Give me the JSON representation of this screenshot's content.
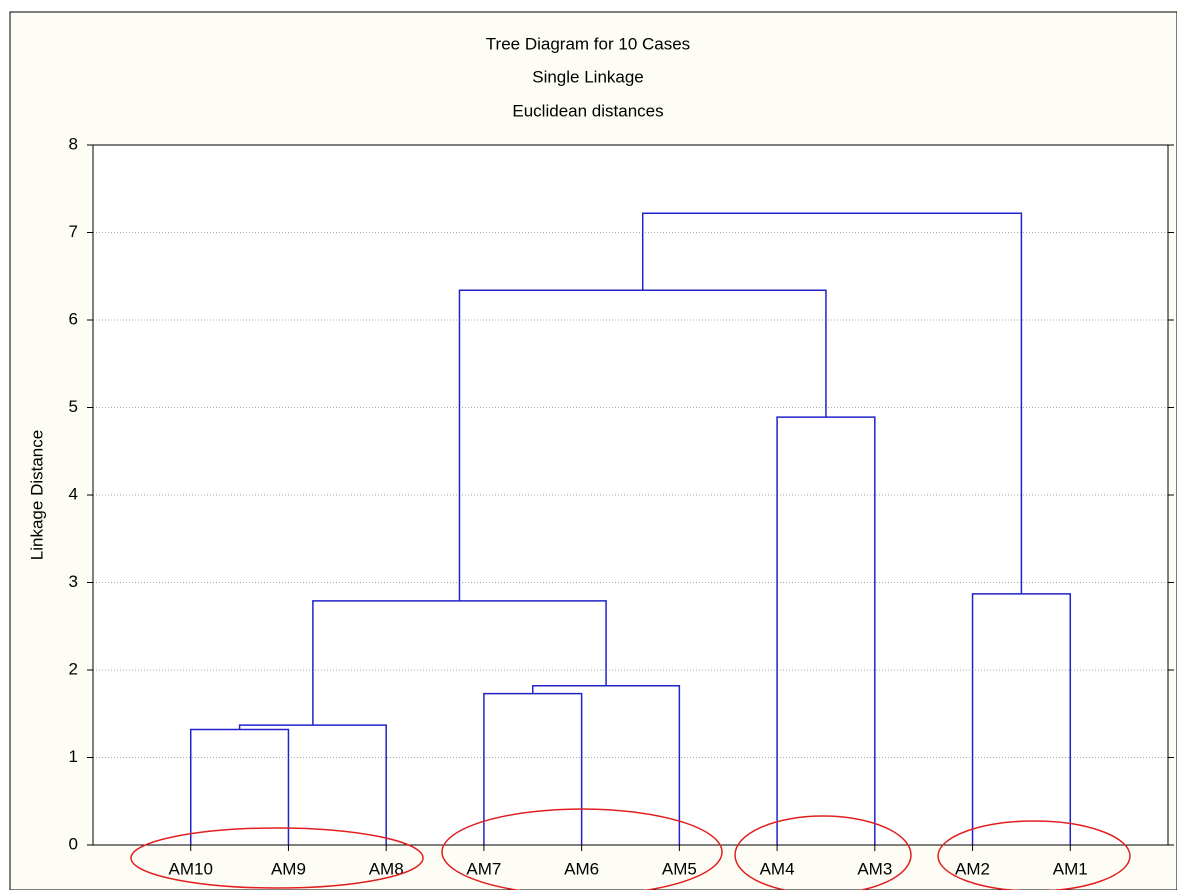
{
  "chart_data": {
    "type": "dendrogram",
    "title": "Tree Diagram for 10 Cases",
    "subtitle": [
      "Single Linkage",
      "Euclidean distances"
    ],
    "ylabel": "Linkage Distance",
    "leaves": [
      "AM10",
      "AM9",
      "AM8",
      "AM7",
      "AM6",
      "AM5",
      "AM4",
      "AM3",
      "AM2",
      "AM1"
    ],
    "merges": [
      [
        0,
        1,
        1.32
      ],
      [
        10,
        2,
        1.37
      ],
      [
        3,
        4,
        1.73
      ],
      [
        12,
        5,
        1.82
      ],
      [
        11,
        13,
        2.79
      ],
      [
        8,
        9,
        2.87
      ],
      [
        6,
        7,
        4.89
      ],
      [
        14,
        16,
        6.34
      ],
      [
        17,
        15,
        7.22
      ]
    ],
    "ylim": [
      0,
      8
    ],
    "yticks": [
      0,
      1,
      2,
      3,
      4,
      5,
      6,
      7,
      8
    ],
    "grid": true,
    "color": "#2222cc"
  }
}
